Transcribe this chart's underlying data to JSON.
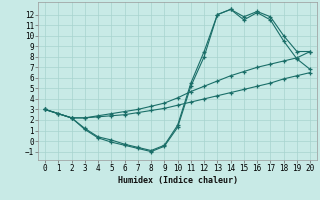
{
  "xlabel": "Humidex (Indice chaleur)",
  "bg_color": "#c8eae6",
  "grid_color": "#a8d4cf",
  "line_color": "#1a6e68",
  "xlim": [
    -0.5,
    20.5
  ],
  "ylim": [
    -1.8,
    13.2
  ],
  "xticks": [
    0,
    1,
    2,
    3,
    4,
    5,
    6,
    7,
    8,
    9,
    10,
    11,
    12,
    13,
    14,
    15,
    16,
    17,
    18,
    19,
    20
  ],
  "yticks": [
    -1,
    0,
    1,
    2,
    3,
    4,
    5,
    6,
    7,
    8,
    9,
    10,
    11,
    12
  ],
  "lines": [
    {
      "x": [
        0,
        1,
        2,
        3,
        4,
        5,
        6,
        7,
        8,
        9,
        10,
        11,
        12,
        13,
        14,
        15,
        16,
        17,
        18,
        19,
        20
      ],
      "y": [
        3.0,
        2.6,
        2.2,
        2.2,
        2.3,
        2.4,
        2.5,
        2.7,
        2.9,
        3.1,
        3.4,
        3.7,
        4.0,
        4.3,
        4.6,
        4.9,
        5.2,
        5.5,
        5.9,
        6.2,
        6.5
      ]
    },
    {
      "x": [
        0,
        1,
        2,
        3,
        4,
        5,
        6,
        7,
        8,
        9,
        10,
        11,
        12,
        13,
        14,
        15,
        16,
        17,
        18,
        19,
        20
      ],
      "y": [
        3.0,
        2.6,
        2.2,
        2.2,
        2.4,
        2.6,
        2.8,
        3.0,
        3.3,
        3.6,
        4.1,
        4.7,
        5.2,
        5.7,
        6.2,
        6.6,
        7.0,
        7.3,
        7.6,
        7.9,
        8.5
      ]
    },
    {
      "x": [
        0,
        2,
        3,
        4,
        5,
        6,
        7,
        8,
        9,
        10,
        11,
        12,
        13,
        14,
        15,
        16,
        17,
        18,
        19,
        20
      ],
      "y": [
        3.0,
        2.2,
        1.2,
        0.4,
        0.1,
        -0.3,
        -0.6,
        -0.9,
        -0.4,
        1.5,
        5.5,
        8.5,
        12.0,
        12.5,
        11.8,
        12.3,
        11.8,
        10.0,
        8.5,
        8.5
      ]
    },
    {
      "x": [
        0,
        2,
        3,
        4,
        5,
        6,
        7,
        8,
        9,
        10,
        11,
        12,
        13,
        14,
        15,
        16,
        17,
        18,
        19,
        20
      ],
      "y": [
        3.0,
        2.2,
        1.1,
        0.3,
        -0.1,
        -0.4,
        -0.7,
        -1.0,
        -0.5,
        1.3,
        5.2,
        8.0,
        12.0,
        12.5,
        11.5,
        12.2,
        11.5,
        9.5,
        7.8,
        6.8
      ]
    }
  ]
}
